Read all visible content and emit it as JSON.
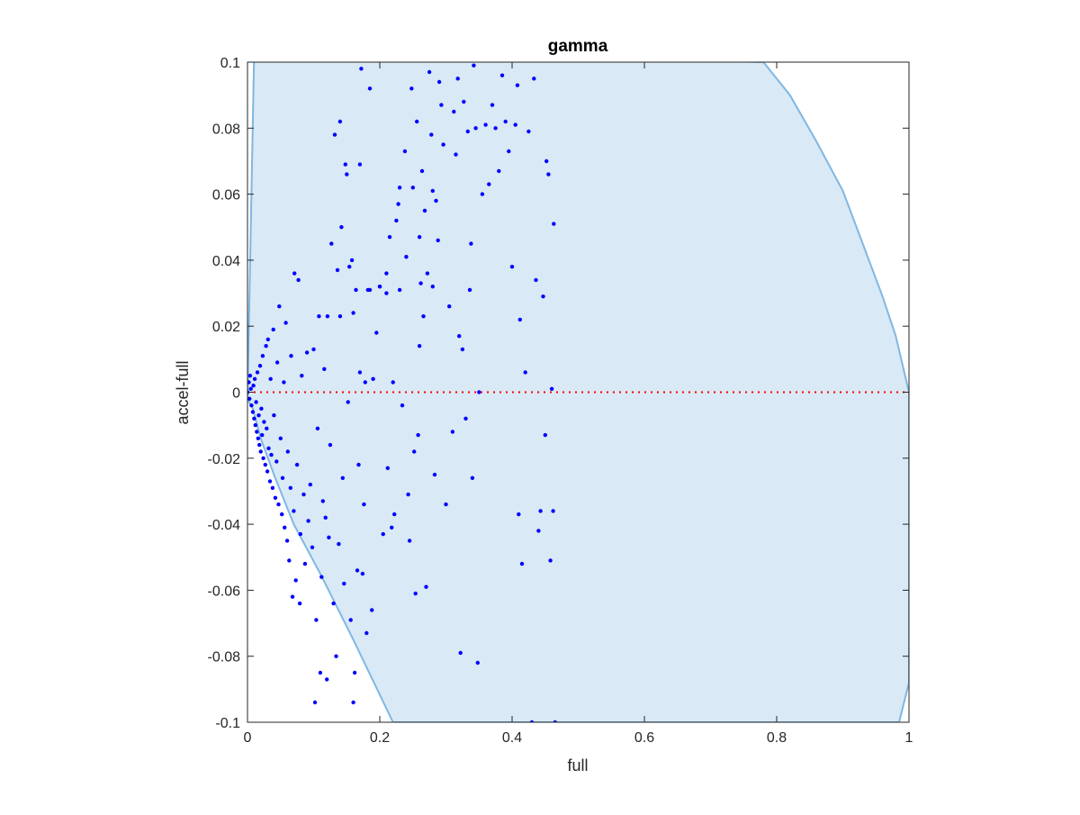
{
  "chart_data": {
    "type": "scatter",
    "title": "gamma",
    "xlabel": "full",
    "ylabel": "accel-full",
    "xlim": [
      0,
      1
    ],
    "ylim": [
      -0.1,
      0.1
    ],
    "x_ticks": [
      0,
      0.2,
      0.4,
      0.6,
      0.8,
      1
    ],
    "x_tick_labels": [
      "0",
      "0.2",
      "0.4",
      "0.6",
      "0.8",
      "1"
    ],
    "y_ticks": [
      -0.1,
      -0.08,
      -0.06,
      -0.04,
      -0.02,
      0,
      0.02,
      0.04,
      0.06,
      0.08,
      0.1
    ],
    "y_tick_labels": [
      "-0.1",
      "-0.08",
      "-0.06",
      "-0.04",
      "-0.02",
      "0",
      "0.02",
      "0.04",
      "0.06",
      "0.08",
      "0.1"
    ],
    "grid": false,
    "legend": "none",
    "colors": {
      "points": "#0000ff",
      "region_fill": "#d9e9f5",
      "region_edge": "#7fb7e3",
      "reference_line": "#ff0000",
      "axes": "#262626"
    },
    "region_boundary": [
      [
        0,
        -0.002
      ],
      [
        0.01,
        0.103
      ],
      [
        0.2,
        0.103
      ],
      [
        0.78,
        0.1
      ],
      [
        0.82,
        0.09
      ],
      [
        0.86,
        0.076
      ],
      [
        0.9,
        0.061
      ],
      [
        0.93,
        0.045
      ],
      [
        0.96,
        0.029
      ],
      [
        0.98,
        0.017
      ],
      [
        1.0,
        0.0
      ],
      [
        1.0,
        -0.088
      ],
      [
        0.985,
        -0.1
      ],
      [
        0.22,
        -0.1
      ],
      [
        0.16,
        -0.075
      ],
      [
        0.11,
        -0.055
      ],
      [
        0.07,
        -0.04
      ],
      [
        0.04,
        -0.025
      ],
      [
        0.02,
        -0.014
      ],
      [
        0.008,
        -0.005
      ]
    ],
    "reference_line": {
      "y": 0,
      "x": [
        0,
        1
      ],
      "style": "dotted"
    },
    "series": [
      {
        "points": [
          [
            0.0,
            0.0
          ],
          [
            0.002,
            0.003
          ],
          [
            0.003,
            -0.002
          ],
          [
            0.005,
            0.001
          ],
          [
            0.006,
            -0.004
          ],
          [
            0.004,
            0.005
          ],
          [
            0.008,
            -0.006
          ],
          [
            0.009,
            0.002
          ],
          [
            0.01,
            -0.008
          ],
          [
            0.011,
            0.004
          ],
          [
            0.012,
            -0.01
          ],
          [
            0.013,
            -0.003
          ],
          [
            0.014,
            -0.012
          ],
          [
            0.015,
            0.006
          ],
          [
            0.016,
            -0.014
          ],
          [
            0.017,
            -0.007
          ],
          [
            0.018,
            -0.016
          ],
          [
            0.019,
            0.008
          ],
          [
            0.02,
            -0.018
          ],
          [
            0.021,
            -0.005
          ],
          [
            0.022,
            -0.013
          ],
          [
            0.023,
            0.011
          ],
          [
            0.024,
            -0.02
          ],
          [
            0.025,
            -0.009
          ],
          [
            0.027,
            -0.022
          ],
          [
            0.028,
            0.014
          ],
          [
            0.029,
            -0.011
          ],
          [
            0.03,
            -0.024
          ],
          [
            0.031,
            0.016
          ],
          [
            0.032,
            -0.017
          ],
          [
            0.034,
            -0.027
          ],
          [
            0.035,
            0.004
          ],
          [
            0.036,
            -0.019
          ],
          [
            0.038,
            -0.029
          ],
          [
            0.039,
            0.019
          ],
          [
            0.04,
            -0.007
          ],
          [
            0.042,
            -0.032
          ],
          [
            0.044,
            -0.021
          ],
          [
            0.045,
            0.009
          ],
          [
            0.047,
            -0.034
          ],
          [
            0.048,
            0.026
          ],
          [
            0.05,
            -0.014
          ],
          [
            0.052,
            -0.037
          ],
          [
            0.053,
            -0.026
          ],
          [
            0.055,
            0.003
          ],
          [
            0.056,
            -0.041
          ],
          [
            0.058,
            0.021
          ],
          [
            0.06,
            -0.045
          ],
          [
            0.061,
            -0.018
          ],
          [
            0.063,
            -0.051
          ],
          [
            0.065,
            -0.029
          ],
          [
            0.066,
            0.011
          ],
          [
            0.068,
            -0.062
          ],
          [
            0.07,
            -0.036
          ],
          [
            0.071,
            0.036
          ],
          [
            0.073,
            -0.057
          ],
          [
            0.075,
            -0.022
          ],
          [
            0.077,
            0.034
          ],
          [
            0.079,
            -0.064
          ],
          [
            0.08,
            -0.043
          ],
          [
            0.082,
            0.005
          ],
          [
            0.085,
            -0.031
          ],
          [
            0.087,
            -0.052
          ],
          [
            0.09,
            0.012
          ],
          [
            0.092,
            -0.039
          ],
          [
            0.095,
            -0.028
          ],
          [
            0.098,
            -0.047
          ],
          [
            0.1,
            0.013
          ],
          [
            0.102,
            -0.094
          ],
          [
            0.104,
            -0.069
          ],
          [
            0.106,
            -0.011
          ],
          [
            0.108,
            0.023
          ],
          [
            0.11,
            -0.085
          ],
          [
            0.112,
            -0.056
          ],
          [
            0.114,
            -0.033
          ],
          [
            0.116,
            0.007
          ],
          [
            0.118,
            -0.038
          ],
          [
            0.12,
            -0.087
          ],
          [
            0.121,
            0.023
          ],
          [
            0.123,
            -0.044
          ],
          [
            0.125,
            -0.016
          ],
          [
            0.127,
            0.045
          ],
          [
            0.13,
            -0.064
          ],
          [
            0.132,
            0.078
          ],
          [
            0.134,
            -0.08
          ],
          [
            0.136,
            0.037
          ],
          [
            0.138,
            -0.046
          ],
          [
            0.14,
            0.082
          ],
          [
            0.142,
            0.05
          ],
          [
            0.144,
            -0.026
          ],
          [
            0.146,
            -0.058
          ],
          [
            0.148,
            0.069
          ],
          [
            0.15,
            0.066
          ],
          [
            0.152,
            -0.003
          ],
          [
            0.154,
            0.038
          ],
          [
            0.156,
            -0.069
          ],
          [
            0.158,
            0.04
          ],
          [
            0.16,
            -0.094
          ],
          [
            0.162,
            -0.085
          ],
          [
            0.164,
            0.031
          ],
          [
            0.166,
            -0.054
          ],
          [
            0.168,
            -0.022
          ],
          [
            0.17,
            0.069
          ],
          [
            0.172,
            0.098
          ],
          [
            0.174,
            -0.055
          ],
          [
            0.176,
            -0.034
          ],
          [
            0.178,
            0.003
          ],
          [
            0.18,
            -0.073
          ],
          [
            0.182,
            0.031
          ],
          [
            0.185,
            0.092
          ],
          [
            0.188,
            -0.066
          ],
          [
            0.19,
            0.004
          ],
          [
            0.195,
            0.018
          ],
          [
            0.2,
            0.032
          ],
          [
            0.205,
            -0.043
          ],
          [
            0.21,
            0.036
          ],
          [
            0.212,
            -0.023
          ],
          [
            0.215,
            0.047
          ],
          [
            0.218,
            -0.041
          ],
          [
            0.22,
            0.003
          ],
          [
            0.222,
            -0.037
          ],
          [
            0.225,
            0.052
          ],
          [
            0.228,
            0.057
          ],
          [
            0.23,
            0.062
          ],
          [
            0.234,
            -0.004
          ],
          [
            0.238,
            0.073
          ],
          [
            0.24,
            0.041
          ],
          [
            0.243,
            -0.031
          ],
          [
            0.245,
            -0.045
          ],
          [
            0.248,
            0.092
          ],
          [
            0.25,
            0.062
          ],
          [
            0.252,
            -0.018
          ],
          [
            0.254,
            -0.061
          ],
          [
            0.256,
            0.082
          ],
          [
            0.258,
            -0.013
          ],
          [
            0.26,
            0.047
          ],
          [
            0.262,
            0.033
          ],
          [
            0.264,
            0.067
          ],
          [
            0.266,
            0.023
          ],
          [
            0.268,
            0.055
          ],
          [
            0.27,
            -0.059
          ],
          [
            0.272,
            0.036
          ],
          [
            0.275,
            0.097
          ],
          [
            0.278,
            0.078
          ],
          [
            0.28,
            0.061
          ],
          [
            0.283,
            -0.025
          ],
          [
            0.285,
            0.058
          ],
          [
            0.288,
            0.046
          ],
          [
            0.29,
            0.094
          ],
          [
            0.293,
            0.087
          ],
          [
            0.296,
            0.075
          ],
          [
            0.3,
            -0.034
          ],
          [
            0.305,
            0.026
          ],
          [
            0.31,
            -0.012
          ],
          [
            0.312,
            0.085
          ],
          [
            0.315,
            0.072
          ],
          [
            0.318,
            0.095
          ],
          [
            0.32,
            0.017
          ],
          [
            0.322,
            -0.079
          ],
          [
            0.325,
            0.013
          ],
          [
            0.327,
            0.088
          ],
          [
            0.33,
            -0.008
          ],
          [
            0.333,
            0.079
          ],
          [
            0.336,
            0.031
          ],
          [
            0.338,
            0.045
          ],
          [
            0.34,
            -0.026
          ],
          [
            0.342,
            0.099
          ],
          [
            0.345,
            0.08
          ],
          [
            0.348,
            -0.082
          ],
          [
            0.35,
            0.0
          ],
          [
            0.355,
            0.06
          ],
          [
            0.36,
            0.081
          ],
          [
            0.365,
            0.063
          ],
          [
            0.37,
            0.087
          ],
          [
            0.375,
            0.08
          ],
          [
            0.38,
            0.067
          ],
          [
            0.385,
            0.096
          ],
          [
            0.39,
            0.082
          ],
          [
            0.395,
            0.073
          ],
          [
            0.4,
            0.038
          ],
          [
            0.405,
            0.081
          ],
          [
            0.408,
            0.093
          ],
          [
            0.41,
            -0.037
          ],
          [
            0.412,
            0.022
          ],
          [
            0.415,
            -0.052
          ],
          [
            0.42,
            0.006
          ],
          [
            0.425,
            0.079
          ],
          [
            0.43,
            -0.1
          ],
          [
            0.433,
            0.095
          ],
          [
            0.436,
            0.034
          ],
          [
            0.44,
            -0.042
          ],
          [
            0.443,
            -0.036
          ],
          [
            0.447,
            0.029
          ],
          [
            0.45,
            -0.013
          ],
          [
            0.452,
            0.07
          ],
          [
            0.455,
            0.066
          ],
          [
            0.458,
            -0.051
          ],
          [
            0.46,
            0.001
          ],
          [
            0.462,
            -0.036
          ],
          [
            0.463,
            0.051
          ],
          [
            0.465,
            -0.1
          ],
          [
            0.26,
            0.014
          ],
          [
            0.17,
            0.006
          ],
          [
            0.2,
            0.032
          ],
          [
            0.28,
            0.032
          ],
          [
            0.23,
            0.031
          ],
          [
            0.21,
            0.03
          ],
          [
            0.185,
            0.031
          ],
          [
            0.14,
            0.023
          ],
          [
            0.16,
            0.024
          ]
        ]
      }
    ]
  }
}
